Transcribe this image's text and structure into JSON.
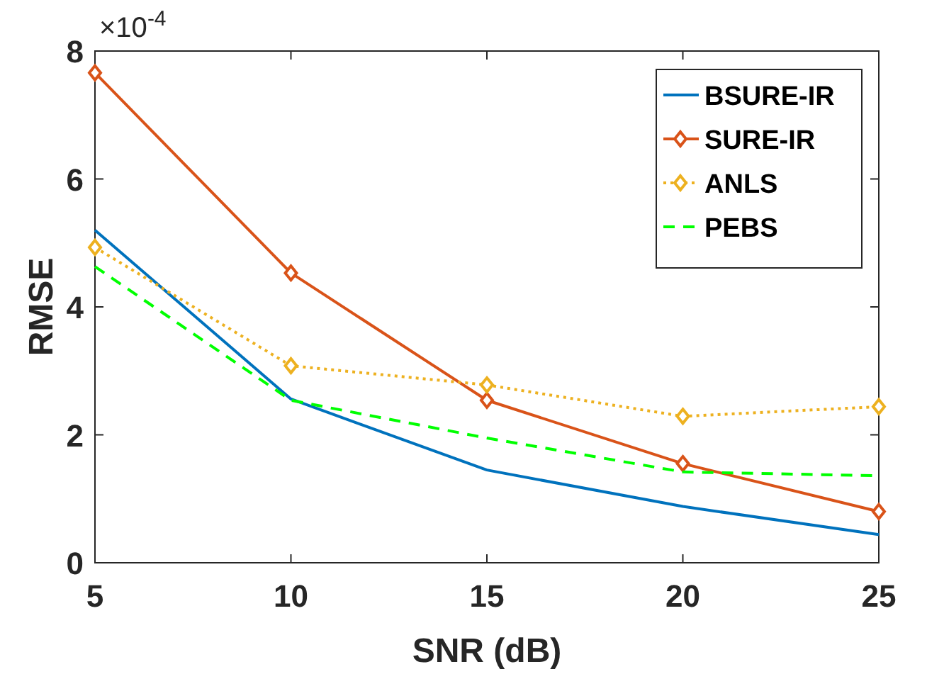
{
  "chart_data": {
    "type": "line",
    "xlabel": "SNR (dB)",
    "ylabel": "RMSE",
    "x": [
      5,
      10,
      15,
      20,
      25
    ],
    "xlim": [
      5,
      25
    ],
    "xticks": [
      5,
      10,
      15,
      20,
      25
    ],
    "ylim": [
      0,
      8
    ],
    "yticks": [
      0,
      2,
      4,
      6,
      8
    ],
    "legend": "top right",
    "annotations": [
      "×10$^{-4}$"
    ],
    "series": [
      {
        "name": "BSURE-IR",
        "color": "#0072bd",
        "values": [
          5.2,
          2.56,
          1.45,
          0.88,
          0.44
        ],
        "marker": "none",
        "line_style": "solid"
      },
      {
        "name": "SURE-IR",
        "color": "#d95319",
        "values": [
          7.66,
          4.53,
          2.54,
          1.55,
          0.8
        ],
        "marker": "diamond",
        "line_style": "solid"
      },
      {
        "name": "ANLS",
        "color": "#edb120",
        "values": [
          4.93,
          3.08,
          2.78,
          2.29,
          2.44
        ],
        "marker": "diamond",
        "line_style": "dotted"
      },
      {
        "name": "PEBS",
        "color": "#00ff00",
        "values": [
          4.63,
          2.54,
          1.95,
          1.42,
          1.36
        ],
        "marker": "none",
        "line_style": "dashed"
      }
    ]
  }
}
